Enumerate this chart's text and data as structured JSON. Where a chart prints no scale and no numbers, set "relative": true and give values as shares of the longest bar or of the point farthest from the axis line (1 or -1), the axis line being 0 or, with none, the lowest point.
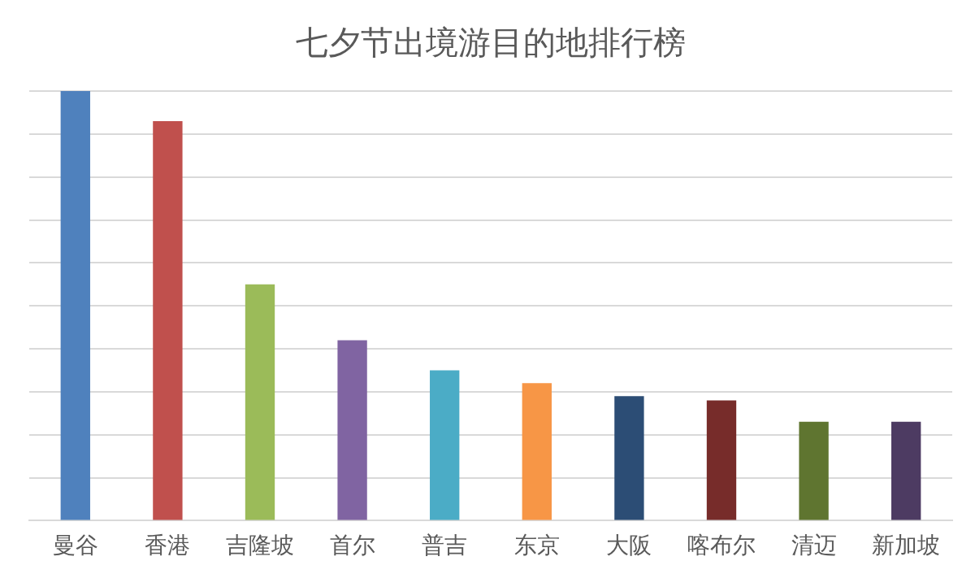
{
  "chart_data": {
    "type": "bar",
    "title": "七夕节出境游目的地排行榜",
    "relative": true,
    "grid": "y",
    "categories": [
      "曼谷",
      "香港",
      "吉隆坡",
      "首尔",
      "普吉",
      "东京",
      "大阪",
      "喀布尔",
      "清迈",
      "新加坡"
    ],
    "values": [
      1,
      0.93,
      0.55,
      0.42,
      0.35,
      0.32,
      0.29,
      0.28,
      0.23,
      0.23
    ],
    "colors": [
      "#4f81bd",
      "#c0504d",
      "#9bbb59",
      "#8064a2",
      "#4bacc6",
      "#f79646",
      "#2c4d75",
      "#772c2a",
      "#5f7530",
      "#4d3b62"
    ]
  }
}
